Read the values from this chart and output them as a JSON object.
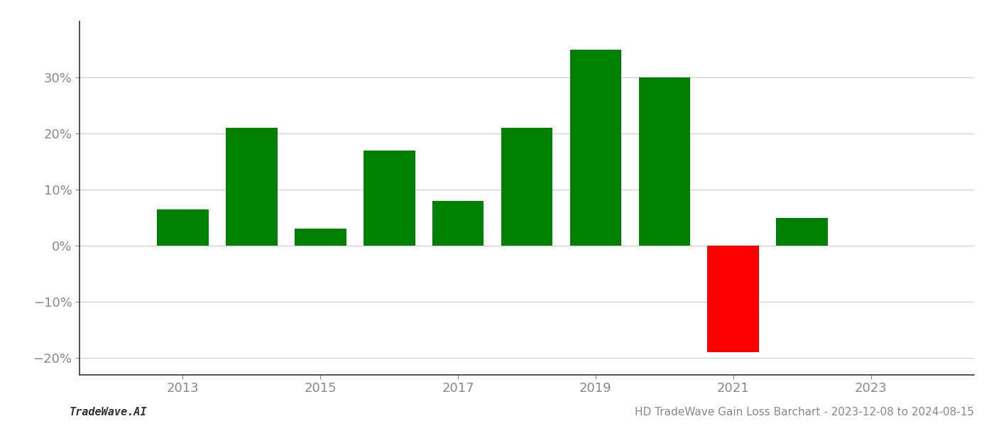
{
  "years": [
    2013,
    2014,
    2015,
    2016,
    2017,
    2018,
    2019,
    2020,
    2021,
    2022
  ],
  "values": [
    6.5,
    21.0,
    3.0,
    17.0,
    8.0,
    21.0,
    35.0,
    30.0,
    -19.0,
    5.0
  ],
  "colors": [
    "#008000",
    "#008000",
    "#008000",
    "#008000",
    "#008000",
    "#008000",
    "#008000",
    "#008000",
    "#ff0000",
    "#008000"
  ],
  "xlim": [
    2011.5,
    2024.5
  ],
  "ylim": [
    -23,
    40
  ],
  "yticks": [
    -20,
    -10,
    0,
    10,
    20,
    30
  ],
  "ytick_labels": [
    "−20%",
    "−10%",
    "0%",
    "10%",
    "20%",
    "30%"
  ],
  "xticks": [
    2013,
    2015,
    2017,
    2019,
    2021,
    2023
  ],
  "bar_width": 0.75,
  "title": "HD TradeWave Gain Loss Barchart - 2023-12-08 to 2024-08-15",
  "footer_left": "TradeWave.AI",
  "background_color": "#ffffff",
  "grid_color": "#cccccc",
  "spine_color": "#333333",
  "tick_color": "#888888",
  "label_color": "#888888",
  "title_fontsize": 11,
  "tick_fontsize": 13,
  "footer_fontsize": 11
}
